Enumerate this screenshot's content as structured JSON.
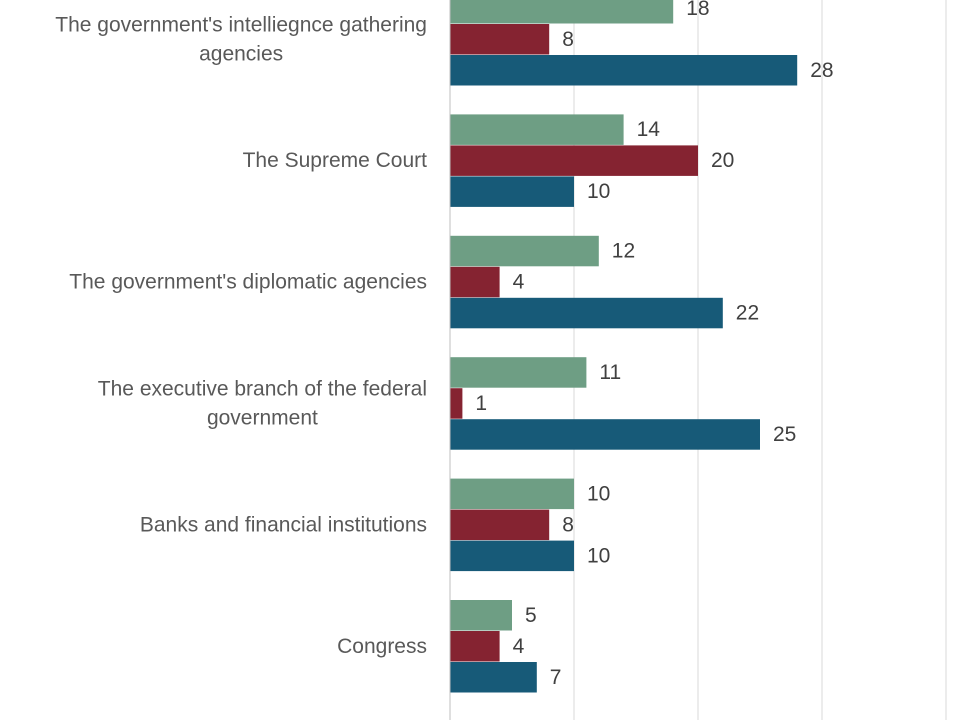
{
  "chart_data": {
    "type": "bar",
    "orientation": "horizontal",
    "grid": true,
    "categories": [
      "The government's intelliegnce gathering agencies",
      "The Supreme Court",
      "The government's diplomatic agencies",
      "The executive branch of the federal government",
      "Banks and financial institutions",
      "Congress"
    ],
    "series": [
      {
        "color": "#6e9e84",
        "values": [
          18,
          14,
          12,
          11,
          10,
          5
        ]
      },
      {
        "color": "#852331",
        "values": [
          8,
          20,
          4,
          1,
          8,
          4
        ]
      },
      {
        "color": "#175a78",
        "values": [
          28,
          10,
          22,
          25,
          10,
          7
        ]
      }
    ],
    "xlim": [
      0,
      40
    ]
  }
}
